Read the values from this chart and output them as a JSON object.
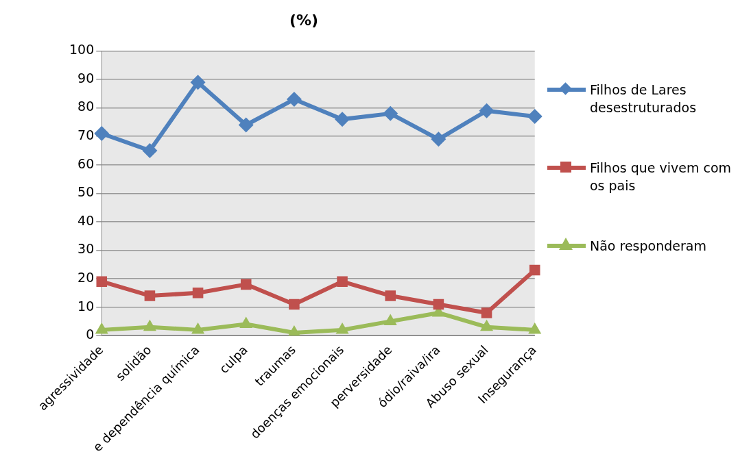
{
  "chart_data": {
    "type": "line",
    "title": "(%)",
    "categories": [
      "agressividade",
      "solidão",
      "e dependência química",
      "culpa",
      "traumas",
      "doenças emocionais",
      "perversidade",
      "ódio/raiva/ira",
      "Abuso sexual",
      "Insegurança"
    ],
    "series": [
      {
        "name": "Filhos de Lares desestruturados",
        "color": "#4f81bd",
        "marker": "diamond",
        "values": [
          71,
          65,
          89,
          74,
          83,
          76,
          78,
          69,
          79,
          77
        ]
      },
      {
        "name": "Filhos que vivem com os pais",
        "color": "#c0504d",
        "marker": "square",
        "values": [
          19,
          14,
          15,
          18,
          11,
          19,
          14,
          11,
          8,
          23
        ]
      },
      {
        "name": "Não responderam",
        "color": "#9bbb59",
        "marker": "triangle",
        "values": [
          2,
          3,
          2,
          4,
          1,
          2,
          5,
          8,
          3,
          2
        ]
      }
    ],
    "ylim": [
      0,
      100
    ],
    "yticks": [
      0,
      10,
      20,
      30,
      40,
      50,
      60,
      70,
      80,
      90,
      100
    ],
    "grid": "y",
    "legend": "right"
  }
}
